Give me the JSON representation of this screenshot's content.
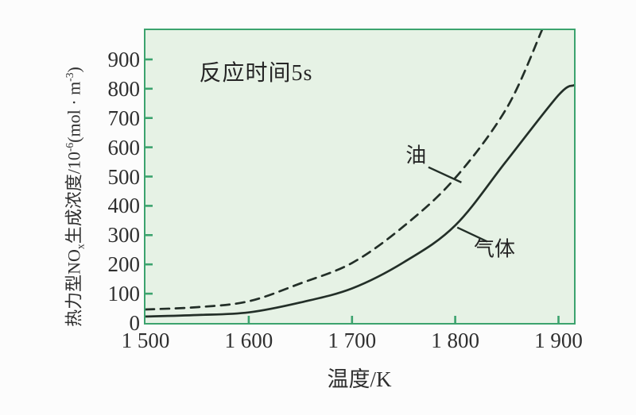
{
  "page": {
    "background": "#fcfcfc"
  },
  "chart_data": {
    "type": "line",
    "annotation": {
      "text": "反应时间5s",
      "x": 1607,
      "y": 858
    },
    "xlabel": "温度/K",
    "ylabel": {
      "p1": "热力型NO",
      "p2": "x",
      "p3": "生成浓度/10",
      "p4": "-6",
      "p5": "(mol · m",
      "p6": "-3",
      "p7": ")"
    },
    "xlim": [
      1500,
      1915
    ],
    "ylim": [
      0,
      1000
    ],
    "xticks": {
      "values": [
        1500,
        1600,
        1700,
        1800,
        1900
      ],
      "labels": [
        "1 500",
        "1 600",
        "1 700",
        "1 800",
        "1 900"
      ]
    },
    "yticks": [
      0,
      100,
      200,
      300,
      400,
      500,
      600,
      700,
      800,
      900
    ],
    "grid": false,
    "legend_position": "inline-labels",
    "series": [
      {
        "name": "油",
        "style": "dashed",
        "x": [
          1500,
          1550,
          1600,
          1650,
          1700,
          1750,
          1800,
          1850,
          1884
        ],
        "y": [
          46,
          54,
          74,
          135,
          205,
          330,
          495,
          735,
          1000
        ]
      },
      {
        "name": "气体",
        "style": "solid",
        "x": [
          1500,
          1550,
          1600,
          1650,
          1700,
          1750,
          1800,
          1850,
          1900,
          1915
        ],
        "y": [
          22,
          27,
          36,
          70,
          118,
          207,
          333,
          555,
          778,
          812
        ]
      }
    ],
    "series_labels": [
      {
        "text": "油",
        "text_x": 1762,
        "text_y": 578,
        "line": [
          [
            1774,
            532
          ],
          [
            1806,
            480
          ]
        ]
      },
      {
        "text": "气体",
        "text_x": 1838,
        "text_y": 258,
        "line": [
          [
            1802,
            326
          ],
          [
            1831,
            278
          ]
        ]
      }
    ],
    "colors": {
      "plot_bg": "#e6f2e5",
      "axis": "#3ca36e",
      "curve": "#232f28",
      "text": "#2f2f2f"
    }
  }
}
